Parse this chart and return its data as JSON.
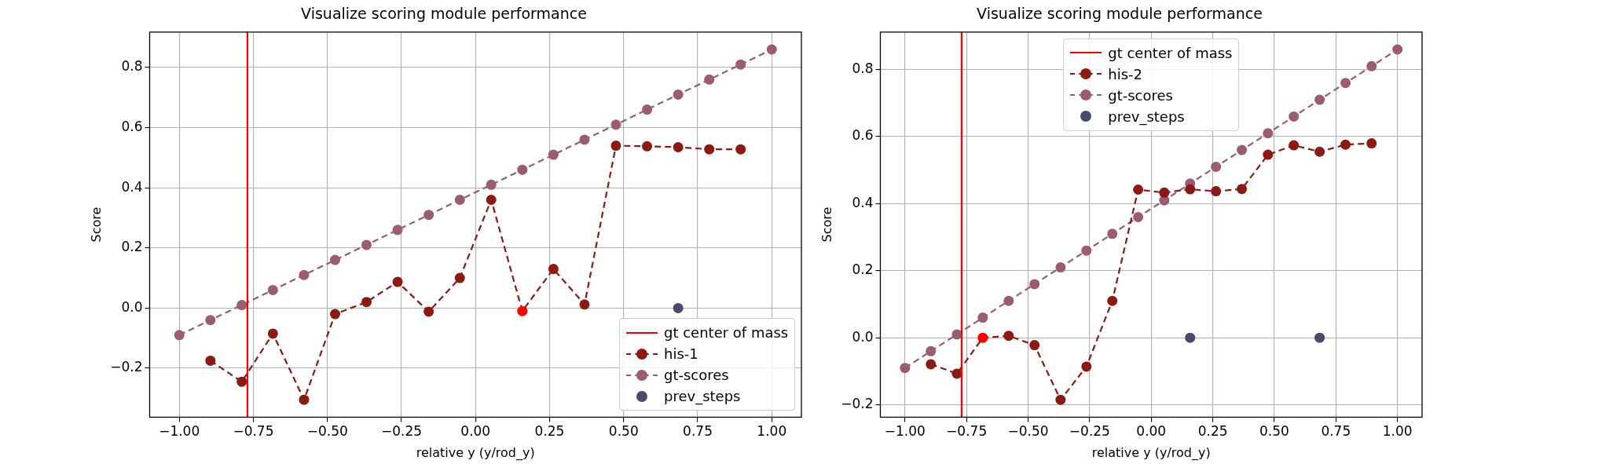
{
  "chart_data": [
    {
      "type": "line",
      "title": "Visualize scoring module performance",
      "xlabel": "relative y (y/rod_y)",
      "ylabel": "Score",
      "xlim": [
        -1.1,
        1.1
      ],
      "ylim": [
        -0.363,
        0.918
      ],
      "xticks": [
        {
          "value": -1,
          "label": "−1.00"
        },
        {
          "value": -0.75,
          "label": "−0.75"
        },
        {
          "value": -0.5,
          "label": "−0.50"
        },
        {
          "value": -0.25,
          "label": "−0.25"
        },
        {
          "value": 0,
          "label": "0.00"
        },
        {
          "value": 0.25,
          "label": "0.25"
        },
        {
          "value": 0.5,
          "label": "0.50"
        },
        {
          "value": 0.75,
          "label": "0.75"
        },
        {
          "value": 1,
          "label": "1.00"
        }
      ],
      "yticks": [
        {
          "value": -0.2,
          "label": "−0.2"
        },
        {
          "value": 0,
          "label": "0.0"
        },
        {
          "value": 0.2,
          "label": "0.2"
        },
        {
          "value": 0.4,
          "label": "0.4"
        },
        {
          "value": 0.6,
          "label": "0.6"
        },
        {
          "value": 0.8,
          "label": "0.8"
        }
      ],
      "grid": true,
      "legend": "bottom right",
      "marker": "circle",
      "line_style": "dashed",
      "series": [
        {
          "name": "gt center of mass",
          "type": "line",
          "color": "#ff0000",
          "marker": "none",
          "line_style": "solid",
          "x": [
            -0.77,
            -0.77
          ],
          "values": [
            -0.363,
            0.918
          ]
        },
        {
          "name": "his-1",
          "type": "line",
          "color": "#8b1a12",
          "x": [
            -0.895,
            -0.789,
            -0.684,
            -0.579,
            -0.474,
            -0.368,
            -0.263,
            -0.158,
            -0.053,
            0.053,
            0.158,
            0.263,
            0.368,
            0.474,
            0.579,
            0.684,
            0.789,
            0.895
          ],
          "values": [
            -0.175,
            -0.245,
            -0.085,
            -0.305,
            -0.02,
            0.02,
            0.087,
            -0.012,
            0.1,
            0.36,
            -0.01,
            0.13,
            0.012,
            0.54,
            0.538,
            0.535,
            0.528,
            0.528
          ],
          "colors": [
            "#8b1a12",
            "#8b1a12",
            "#8b1a12",
            "#8b1a12",
            "#8b1a12",
            "#8b1a12",
            "#8b1a12",
            "#8b1a12",
            "#8b1a12",
            "#8b1a12",
            "#ff0000",
            "#8b1a12",
            "#8b1a12",
            "#8b1a12",
            "#8b1a12",
            "#8b1a12",
            "#8b1a12",
            "#8b1a12"
          ]
        },
        {
          "name": "gt-scores",
          "type": "line",
          "color": "#9b5b70",
          "x": [
            -1,
            -0.895,
            -0.789,
            -0.684,
            -0.579,
            -0.474,
            -0.368,
            -0.263,
            -0.158,
            -0.053,
            0.053,
            0.158,
            0.263,
            0.368,
            0.474,
            0.579,
            0.684,
            0.789,
            0.895,
            1
          ],
          "values": [
            -0.09,
            -0.04,
            0.01,
            0.06,
            0.11,
            0.16,
            0.21,
            0.26,
            0.31,
            0.36,
            0.41,
            0.46,
            0.51,
            0.56,
            0.61,
            0.66,
            0.71,
            0.76,
            0.81,
            0.86
          ]
        },
        {
          "name": "prev_steps",
          "type": "scatter",
          "color": "#4a4a6a",
          "x": [
            0.684
          ],
          "values": [
            0
          ]
        }
      ]
    },
    {
      "type": "line",
      "title": "Visualize scoring module performance",
      "xlabel": "relative y (y/rod_y)",
      "ylabel": "Score",
      "xlim": [
        -1.1,
        1.1
      ],
      "ylim": [
        -0.237,
        0.912
      ],
      "xticks": [
        {
          "value": -1,
          "label": "−1.00"
        },
        {
          "value": -0.75,
          "label": "−0.75"
        },
        {
          "value": -0.5,
          "label": "−0.50"
        },
        {
          "value": -0.25,
          "label": "−0.25"
        },
        {
          "value": 0,
          "label": "0.00"
        },
        {
          "value": 0.25,
          "label": "0.25"
        },
        {
          "value": 0.5,
          "label": "0.50"
        },
        {
          "value": 0.75,
          "label": "0.75"
        },
        {
          "value": 1,
          "label": "1.00"
        }
      ],
      "yticks": [
        {
          "value": -0.2,
          "label": "−0.2"
        },
        {
          "value": 0,
          "label": "0.0"
        },
        {
          "value": 0.2,
          "label": "0.2"
        },
        {
          "value": 0.4,
          "label": "0.4"
        },
        {
          "value": 0.6,
          "label": "0.6"
        },
        {
          "value": 0.8,
          "label": "0.8"
        }
      ],
      "grid": true,
      "legend": "top",
      "marker": "circle",
      "line_style": "dashed",
      "series": [
        {
          "name": "gt center of mass",
          "type": "line",
          "color": "#ff0000",
          "marker": "none",
          "line_style": "solid",
          "x": [
            -0.77,
            -0.77
          ],
          "values": [
            -0.237,
            0.912
          ]
        },
        {
          "name": "his-2",
          "type": "line",
          "color": "#8b1a12",
          "x": [
            -0.895,
            -0.789,
            -0.684,
            -0.579,
            -0.474,
            -0.368,
            -0.263,
            -0.158,
            -0.053,
            0.053,
            0.158,
            0.263,
            0.368,
            0.474,
            0.579,
            0.684,
            0.789,
            0.895
          ],
          "values": [
            -0.079,
            -0.107,
            0,
            0.006,
            -0.022,
            -0.185,
            -0.086,
            0.11,
            0.442,
            0.433,
            0.443,
            0.437,
            0.444,
            0.546,
            0.574,
            0.555,
            0.576,
            0.58
          ],
          "colors": [
            "#8b1a12",
            "#8b1a12",
            "#ff0000",
            "#8b1a12",
            "#8b1a12",
            "#8b1a12",
            "#8b1a12",
            "#8b1a12",
            "#8b1a12",
            "#8b1a12",
            "#8b1a12",
            "#8b1a12",
            "#8b1a12",
            "#8b1a12",
            "#8b1a12",
            "#8b1a12",
            "#8b1a12",
            "#8b1a12"
          ]
        },
        {
          "name": "gt-scores",
          "type": "line",
          "color": "#9b5b70",
          "x": [
            -1,
            -0.895,
            -0.789,
            -0.684,
            -0.579,
            -0.474,
            -0.368,
            -0.263,
            -0.158,
            -0.053,
            0.053,
            0.158,
            0.263,
            0.368,
            0.474,
            0.579,
            0.684,
            0.789,
            0.895,
            1
          ],
          "values": [
            -0.09,
            -0.04,
            0.01,
            0.06,
            0.11,
            0.16,
            0.21,
            0.26,
            0.31,
            0.36,
            0.41,
            0.46,
            0.51,
            0.56,
            0.61,
            0.66,
            0.71,
            0.76,
            0.81,
            0.86
          ]
        },
        {
          "name": "prev_steps",
          "type": "scatter",
          "color": "#4a4a6a",
          "x": [
            0.158,
            0.684
          ],
          "values": [
            0,
            0
          ]
        }
      ]
    }
  ]
}
